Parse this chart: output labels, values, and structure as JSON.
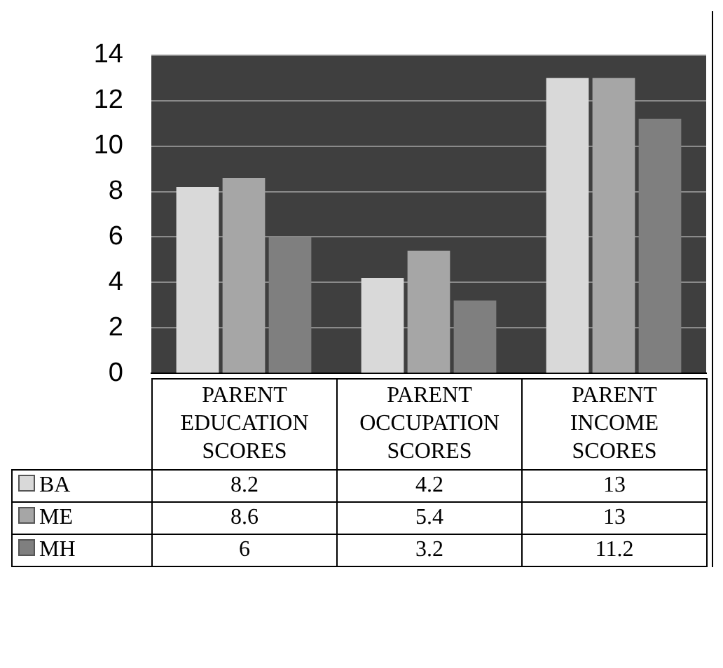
{
  "chart_data": {
    "type": "bar",
    "categories": [
      "PARENT EDUCATION SCORES",
      "PARENT OCCUPATION SCORES",
      "PARENT INCOME SCORES"
    ],
    "series": [
      {
        "name": "BA",
        "color": "#d9d9d9",
        "values": [
          8.2,
          4.2,
          13
        ]
      },
      {
        "name": "ME",
        "color": "#a6a6a6",
        "values": [
          8.6,
          5.4,
          13
        ]
      },
      {
        "name": "MH",
        "color": "#7f7f7f",
        "values": [
          6,
          3.2,
          11.2
        ]
      }
    ],
    "ylim": [
      0,
      14
    ],
    "yticks": [
      0,
      2,
      4,
      6,
      8,
      10,
      12,
      14
    ],
    "grid": "y",
    "data_labels": true,
    "legend": "bottom left"
  }
}
